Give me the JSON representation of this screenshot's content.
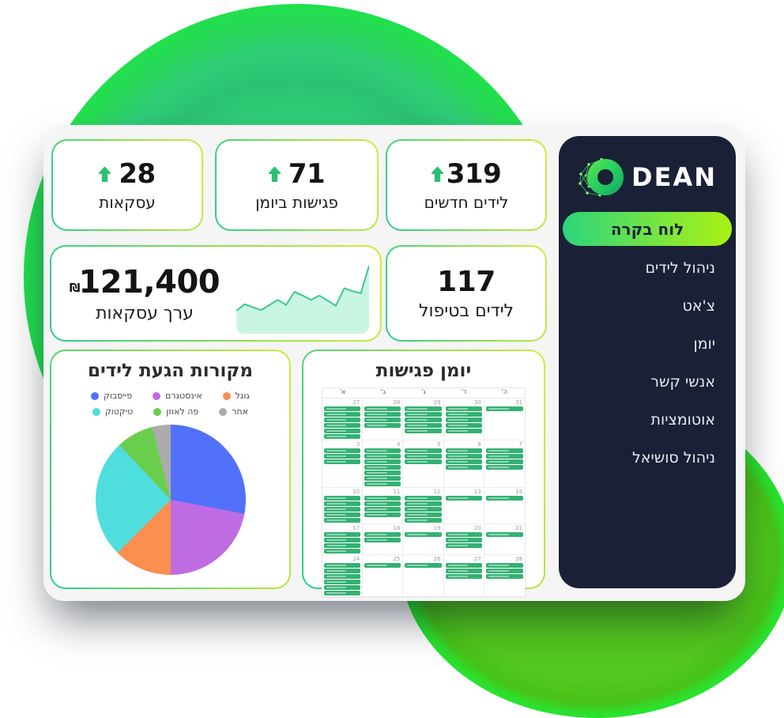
{
  "stats": [
    {
      "value": "319",
      "label": "לידים חדשים",
      "icon": "up-arrow-icon"
    },
    {
      "value": "71",
      "label": "פגישות ביומן",
      "icon": "up-arrow-icon"
    },
    {
      "value": "28",
      "label": "עסקאות",
      "icon": "up-arrow-icon"
    }
  ],
  "value_card": {
    "currency_symbol": "₪",
    "value": "121,400",
    "label": "ערך עסקאות"
  },
  "treatment_card": {
    "value": "117",
    "label": "לידים בטיפול"
  },
  "sidebar": {
    "brand": "DEAN",
    "active_item": "לוח בקרה",
    "items": [
      "ניהול לידים",
      "צ'אט",
      "יומן",
      "אנשי קשר",
      "אוטומציות",
      "ניהול סושיאל"
    ]
  },
  "colors": {
    "accent_green": "#2fbf71",
    "card_border_gradient": [
      "#2bcf8a",
      "#cdee3a"
    ],
    "pill_gradient": [
      "#2bd57b",
      "#a8f213"
    ],
    "sidebar_bg": "#1a2136",
    "blob_top": "#30cc78",
    "blob_bottom": "#53c81e",
    "calendar_event_green": "#34b173"
  },
  "chart_data": [
    {
      "id": "lead_sources_pie",
      "type": "pie",
      "title": "מקורות הגעת לידים",
      "labels": [
        "פייסבוק",
        "אינסטגרם",
        "גוגל",
        "טיקטוק",
        "פה לאוזן",
        "אחר"
      ],
      "values": [
        28,
        22,
        12.5,
        25.5,
        8,
        4
      ],
      "colors": [
        "#5271fa",
        "#bf6ce2",
        "#fa8f4f",
        "#4edede",
        "#6bcd4c",
        "#ababab"
      ],
      "legend_position": "top",
      "start_angle_deg": 0,
      "direction": "clockwise"
    },
    {
      "id": "deal_value_trend",
      "type": "area",
      "values": [
        25,
        34,
        30,
        26,
        33,
        40,
        33,
        51,
        46,
        40,
        46,
        39,
        32,
        56,
        52,
        49,
        87
      ],
      "line_color": "#3ec98c",
      "fill_color": "#c9f6e2",
      "axes": "hidden"
    },
    {
      "id": "meetings_calendar",
      "type": "table",
      "title": "יומן פגישות",
      "day_headers": [
        "א'",
        "ב'",
        "ג'",
        "ד'",
        "ה'"
      ],
      "event_color": "#34b173",
      "weeks": [
        {
          "days": [
            {
              "date": 27,
              "events": 6
            },
            {
              "date": 28,
              "events": 4
            },
            {
              "date": 29,
              "events": 5
            },
            {
              "date": 30,
              "events": 5
            },
            {
              "date": 31,
              "events": 1
            }
          ]
        },
        {
          "days": [
            {
              "date": 3,
              "events": 3
            },
            {
              "date": 4,
              "events": 7
            },
            {
              "date": 5,
              "events": 3
            },
            {
              "date": 6,
              "events": 4
            },
            {
              "date": 7,
              "events": 4
            }
          ]
        },
        {
          "days": [
            {
              "date": 10,
              "events": 5
            },
            {
              "date": 11,
              "events": 4
            },
            {
              "date": 12,
              "events": 5
            },
            {
              "date": 13,
              "events": 1
            },
            {
              "date": 14,
              "events": 1
            }
          ]
        },
        {
          "days": [
            {
              "date": 17,
              "events": 4
            },
            {
              "date": 18,
              "events": 2
            },
            {
              "date": 19,
              "events": 1
            },
            {
              "date": 20,
              "events": 3
            },
            {
              "date": 21,
              "events": 1
            }
          ]
        },
        {
          "days": [
            {
              "date": 24,
              "events": 6
            },
            {
              "date": 25,
              "events": 1
            },
            {
              "date": 26,
              "events": 1
            },
            {
              "date": 27,
              "events": 3
            },
            {
              "date": 28,
              "events": 3
            }
          ]
        }
      ]
    }
  ]
}
